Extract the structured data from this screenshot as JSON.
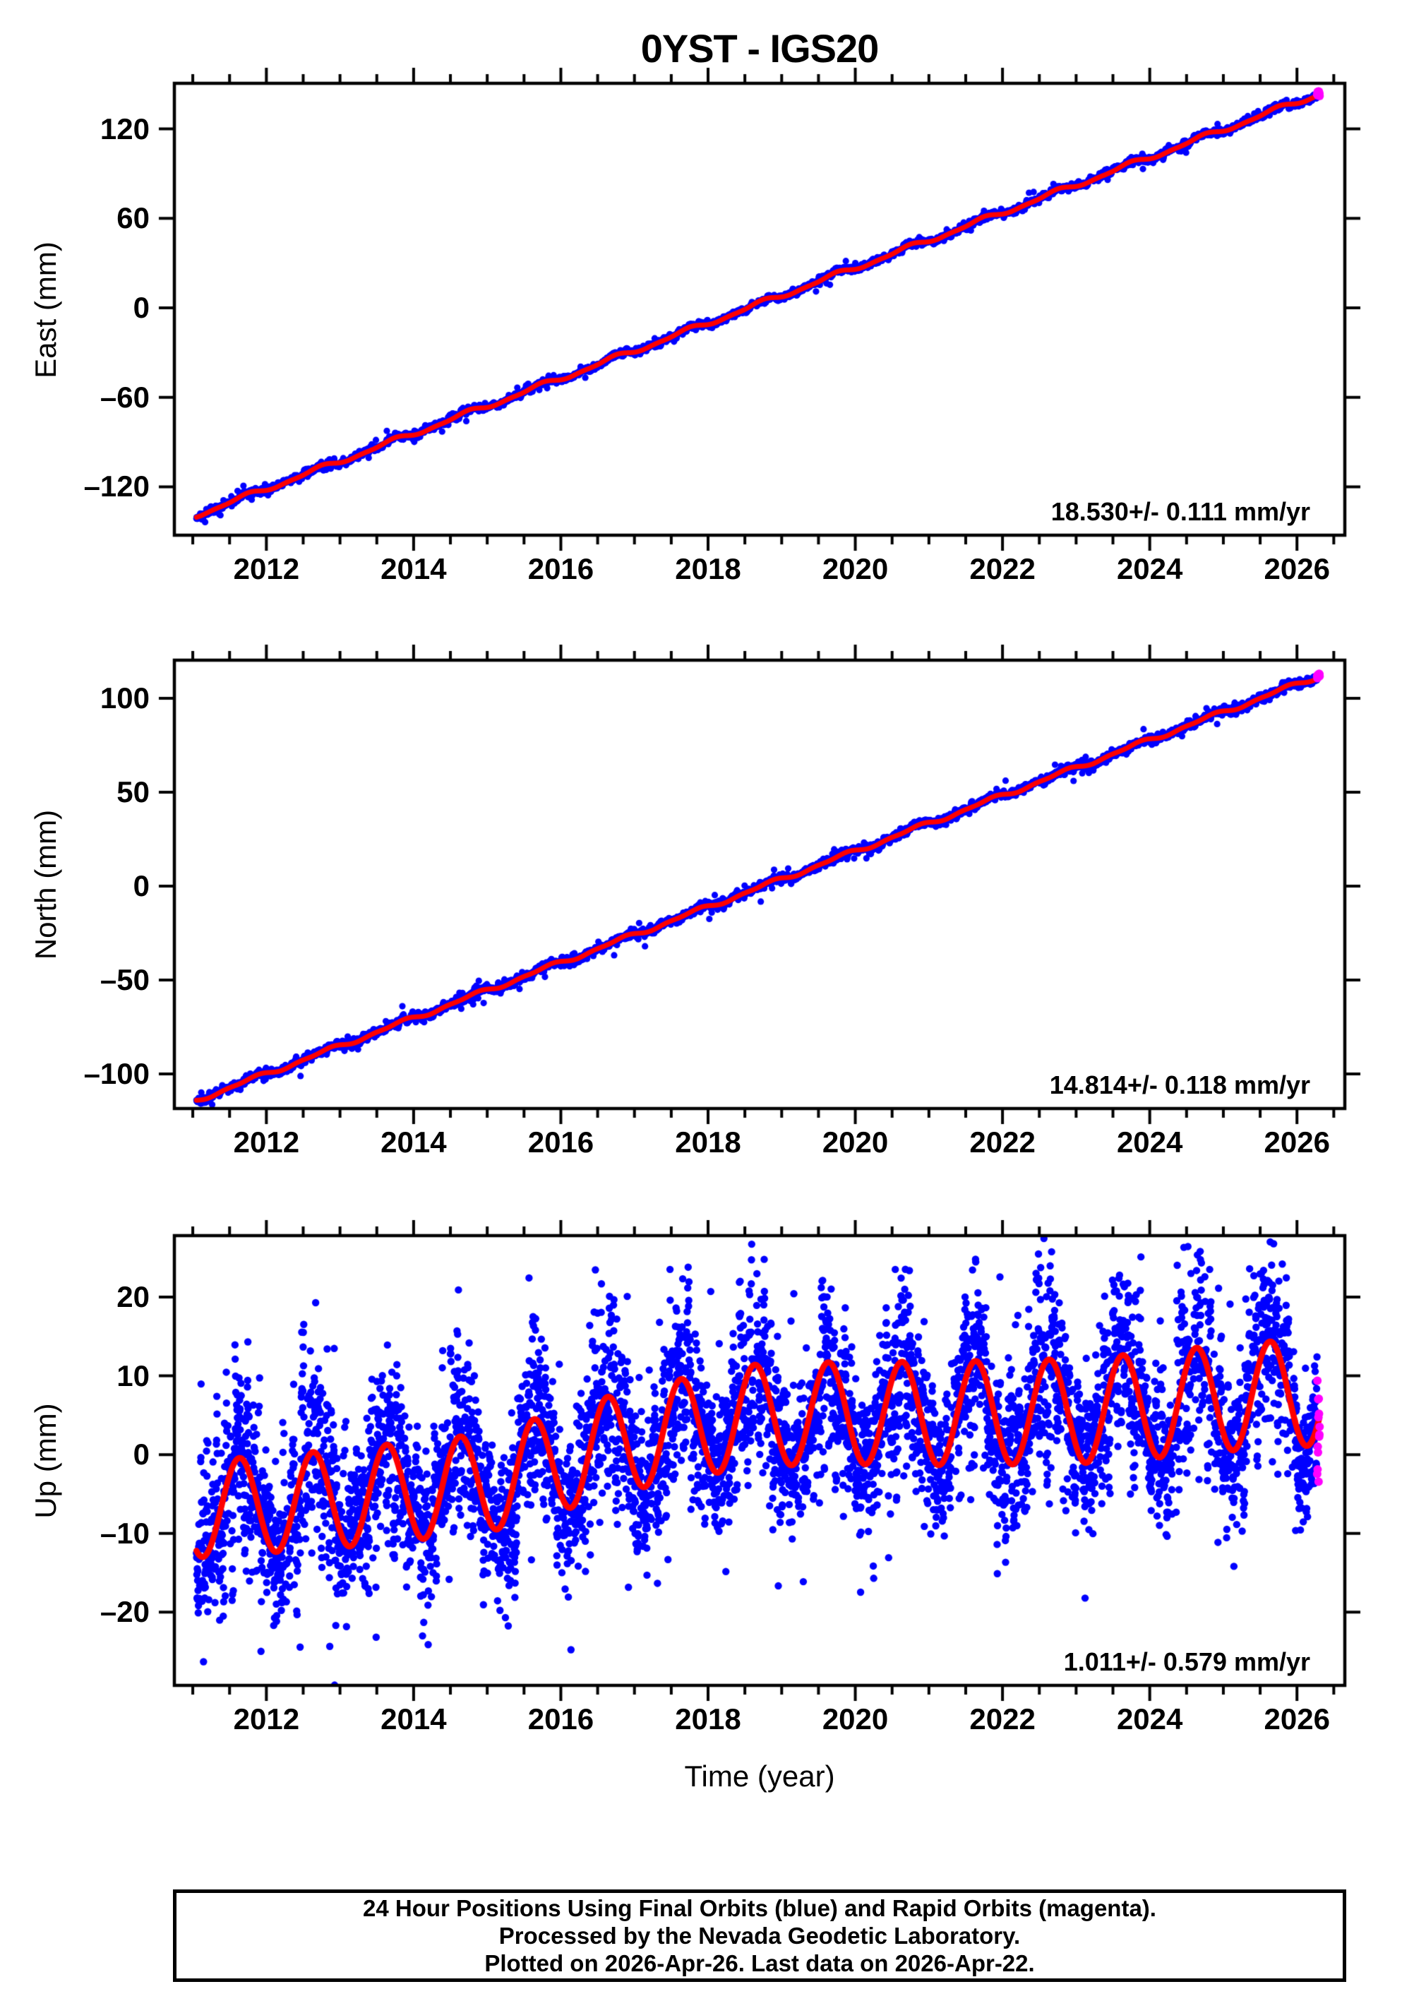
{
  "title": "0YST - IGS20",
  "colors": {
    "final_orbits": "#0000ff",
    "rapid_orbits": "#ff00ff",
    "model_fit": "#ff0000",
    "frame": "#000000",
    "background": "#ffffff"
  },
  "x_axis": {
    "label": "Time (year)",
    "range": [
      2010.75,
      2026.65
    ],
    "major_ticks": [
      2012,
      2014,
      2016,
      2018,
      2020,
      2022,
      2024,
      2026
    ],
    "minor_tick_step": 0.5
  },
  "rapid_orbits_start": 2026.272,
  "footer": {
    "line1": "24 Hour Positions Using Final Orbits (blue) and Rapid Orbits (magenta).",
    "line2": "Processed by the Nevada Geodetic Laboratory.",
    "line3": "Plotted on 2026-Apr-26. Last data on 2026-Apr-22."
  },
  "chart_data": [
    {
      "type": "scatter",
      "component": "East",
      "ylabel": "East (mm)",
      "rate_label": "18.530+/- 0.111 mm/yr",
      "ylim": [
        -152.5,
        150.6
      ],
      "yticks": [
        120,
        60,
        0,
        -60,
        -120
      ],
      "model": {
        "kind": "linear_trend_plus_seasonal",
        "t_start": 2011.05,
        "t_end": 2026.31,
        "value_at_start_mm": -139.0,
        "trend_mm_per_yr": 18.53,
        "annual_amp_mm": 1.5,
        "annual_phase_yr": 0.45,
        "semiannual_amp_mm": 0.6,
        "semiannual_phase_yr": 0.15
      },
      "scatter_sigma_mm": 1.1,
      "points_per_year": 365
    },
    {
      "type": "scatter",
      "component": "North",
      "ylabel": "North (mm)",
      "rate_label": "14.814+/- 0.118 mm/yr",
      "ylim": [
        -118.4,
        120.3
      ],
      "yticks": [
        100,
        50,
        0,
        -50,
        -100
      ],
      "model": {
        "kind": "linear_trend_plus_seasonal",
        "t_start": 2011.05,
        "t_end": 2026.31,
        "value_at_start_mm": -114.0,
        "trend_mm_per_yr": 14.814,
        "annual_amp_mm": 1.0,
        "annual_phase_yr": 0.55,
        "semiannual_amp_mm": 0.5,
        "semiannual_phase_yr": 0.3
      },
      "scatter_sigma_mm": 1.1,
      "points_per_year": 365
    },
    {
      "type": "scatter",
      "component": "Up",
      "ylabel": "Up (mm)",
      "rate_label": "1.011+/- 0.579 mm/yr",
      "ylim": [
        -29.3,
        27.8
      ],
      "yticks": [
        20,
        10,
        0,
        -10,
        -20
      ],
      "model": {
        "kind": "smooth_mean_plus_annual",
        "t_start": 2011.05,
        "t_end": 2026.31,
        "trend_mm_per_yr": 1.011,
        "mean_path_mm": [
          [
            2011.0,
            -7.0
          ],
          [
            2013.0,
            -5.6
          ],
          [
            2015.0,
            -3.6
          ],
          [
            2017.0,
            2.0
          ],
          [
            2018.6,
            5.0
          ],
          [
            2020.0,
            5.3
          ],
          [
            2021.0,
            5.2
          ],
          [
            2023.0,
            5.5
          ],
          [
            2024.0,
            6.2
          ],
          [
            2025.0,
            7.2
          ],
          [
            2026.31,
            8.0
          ]
        ],
        "annual_amp_path_mm": [
          [
            2011.0,
            6.1
          ],
          [
            2026.31,
            6.8
          ]
        ],
        "annual_peak_phase_yr": 0.635
      },
      "scatter_sigma_mm": 5.3,
      "points_per_year": 365
    }
  ]
}
